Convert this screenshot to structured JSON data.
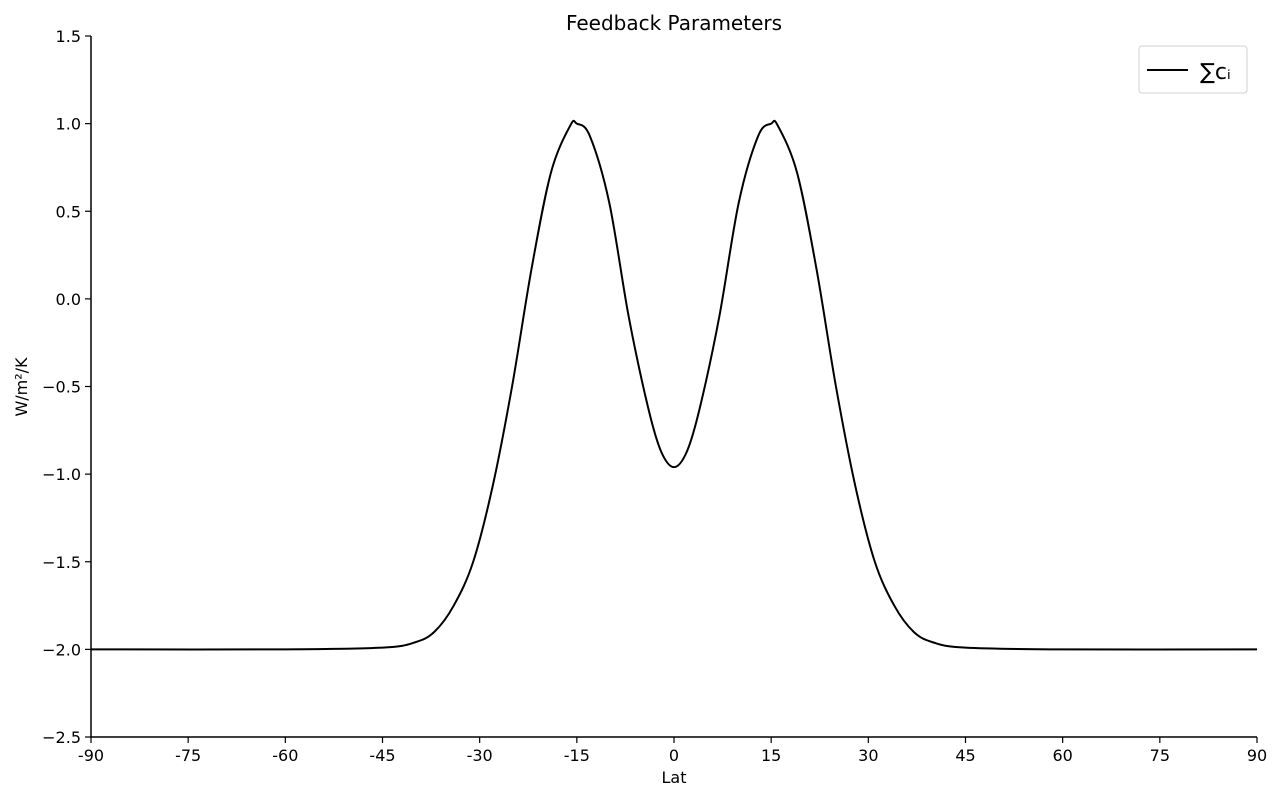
{
  "chart_data": {
    "type": "line",
    "title": "Feedback Parameters",
    "xlabel": "Lat",
    "ylabel": "W/m²/K",
    "xlim": [
      -90,
      90
    ],
    "ylim": [
      -2.5,
      1.5
    ],
    "x_ticks": [
      -90,
      -75,
      -60,
      -45,
      -30,
      -15,
      0,
      15,
      30,
      45,
      60,
      75,
      90
    ],
    "x_tick_labels": [
      "-90",
      "-75",
      "-60",
      "-45",
      "-30",
      "-15",
      "0",
      "15",
      "30",
      "45",
      "60",
      "75",
      "90"
    ],
    "y_ticks": [
      -2.5,
      -2.0,
      -1.5,
      -1.0,
      -0.5,
      0.0,
      0.5,
      1.0,
      1.5
    ],
    "y_tick_labels": [
      "−2.5",
      "−2.0",
      "−1.5",
      "−1.0",
      "−0.5",
      "0.0",
      "0.5",
      "1.0",
      "1.5"
    ],
    "grid": false,
    "legend_position": "top-right",
    "series": [
      {
        "name": "∑cᵢ",
        "color": "#000000",
        "x": [
          -90,
          -60,
          -45,
          -40,
          -37,
          -34,
          -31,
          -28,
          -25,
          -22,
          -19,
          -16,
          -15,
          -13,
          -10,
          -7,
          -4,
          -2,
          0,
          2,
          4,
          7,
          10,
          13,
          15,
          16,
          19,
          22,
          25,
          28,
          31,
          34,
          37,
          40,
          45,
          60,
          90
        ],
        "y": [
          -2.0,
          -2.0,
          -1.99,
          -1.96,
          -1.9,
          -1.75,
          -1.5,
          -1.07,
          -0.5,
          0.17,
          0.72,
          0.99,
          1.0,
          0.93,
          0.55,
          -0.1,
          -0.62,
          -0.87,
          -0.96,
          -0.87,
          -0.62,
          -0.1,
          0.55,
          0.93,
          1.0,
          0.99,
          0.72,
          0.17,
          -0.5,
          -1.07,
          -1.5,
          -1.75,
          -1.9,
          -1.96,
          -1.99,
          -2.0,
          -2.0
        ]
      }
    ]
  }
}
